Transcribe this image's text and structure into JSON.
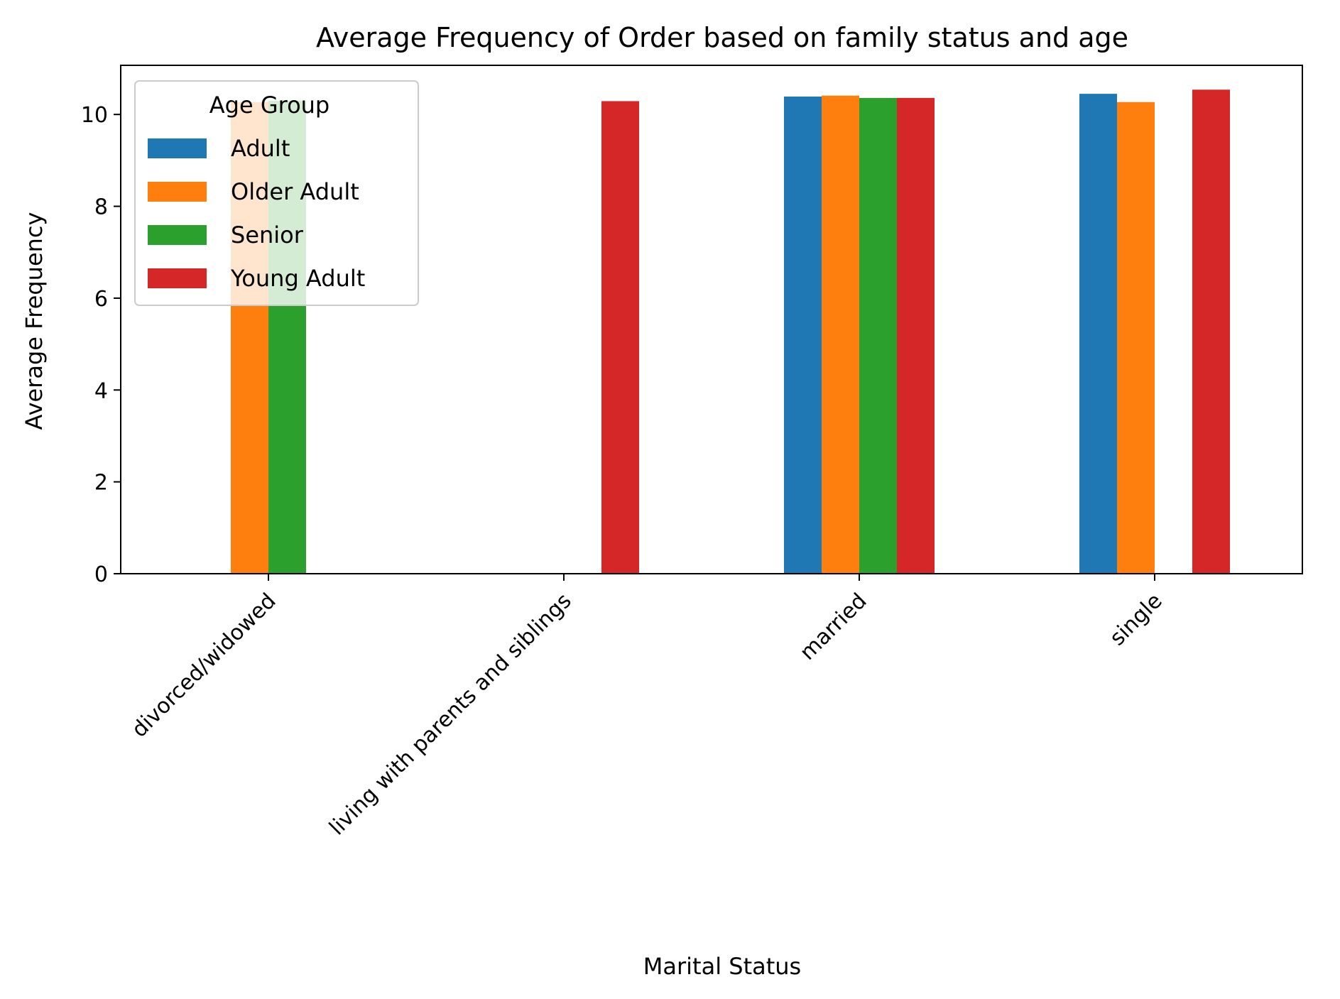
{
  "chart_data": {
    "type": "bar",
    "title": "Average Frequency of Order based on family status and age",
    "xlabel": "Marital Status",
    "ylabel": "Average Frequency",
    "ylim": [
      0,
      11.07
    ],
    "yticks": [
      0,
      2,
      4,
      6,
      8,
      10
    ],
    "categories": [
      "divorced/widowed",
      "living with parents and siblings",
      "married",
      "single"
    ],
    "series": [
      {
        "name": "Adult",
        "color": "#1f77b4",
        "values": [
          null,
          null,
          10.39,
          10.45
        ]
      },
      {
        "name": "Older Adult",
        "color": "#ff7f0e",
        "values": [
          10.27,
          null,
          10.41,
          10.27
        ]
      },
      {
        "name": "Senior",
        "color": "#2ca02c",
        "values": [
          10.3,
          null,
          10.36,
          null
        ]
      },
      {
        "name": "Young Adult",
        "color": "#d62728",
        "values": [
          null,
          10.29,
          10.36,
          10.54
        ]
      }
    ],
    "legend": {
      "title": "Age Group",
      "position": "top-left"
    },
    "grid": false
  }
}
